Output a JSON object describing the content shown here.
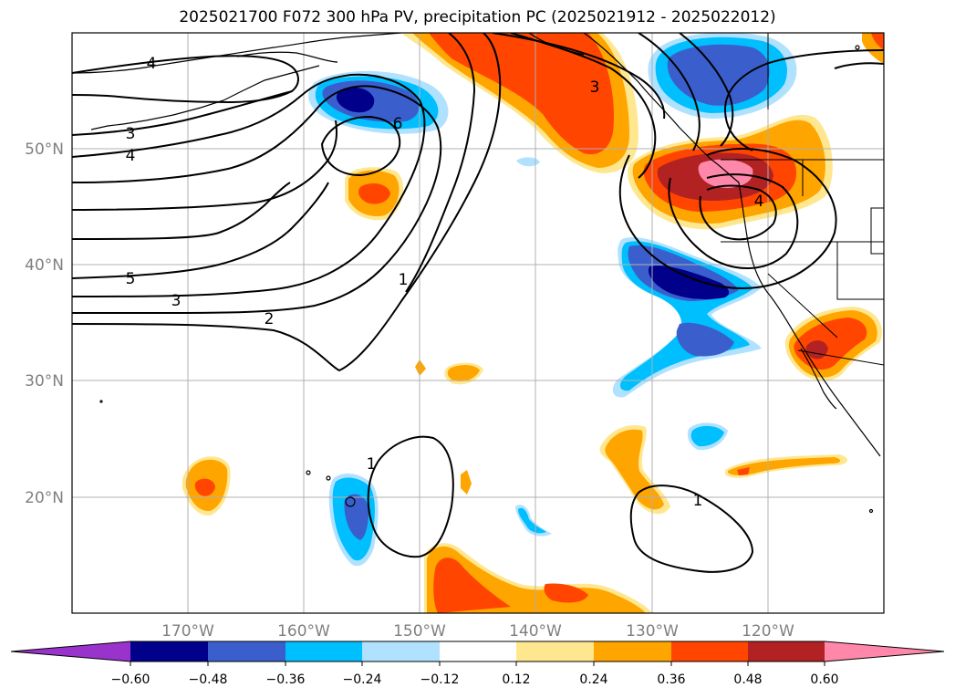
{
  "title": "2025021700 F072 300 hPa PV, precipitation PC (2025021912 - 2025022012)",
  "map": {
    "lat_labels": [
      "50°N",
      "40°N",
      "30°N",
      "20°N"
    ],
    "lon_labels": [
      "170°W",
      "160°W",
      "150°W",
      "140°W",
      "130°W",
      "120°W"
    ],
    "contour_labels": [
      "4",
      "3",
      "4",
      "5",
      "3",
      "2",
      "6",
      "1",
      "3",
      "4",
      "1",
      "1"
    ]
  },
  "colorbar": {
    "ticks": [
      "−0.60",
      "−0.48",
      "−0.36",
      "−0.24",
      "−0.12",
      "0.12",
      "0.24",
      "0.36",
      "0.48",
      "0.60"
    ],
    "colors": {
      "lt_-0.60": "#9933cc",
      "-0.60_-0.48": "#00008b",
      "-0.48_-0.36": "#3a5fcd",
      "-0.36_-0.24": "#00bfff",
      "-0.24_-0.12": "#b0e2ff",
      "-0.12_0.12": "#ffffff",
      "0.12_0.24": "#ffe78f",
      "0.24_0.36": "#ffa500",
      "0.36_0.48": "#ff4500",
      "0.48_0.60": "#b22222",
      "gt_0.60": "#ff88aa"
    }
  }
}
